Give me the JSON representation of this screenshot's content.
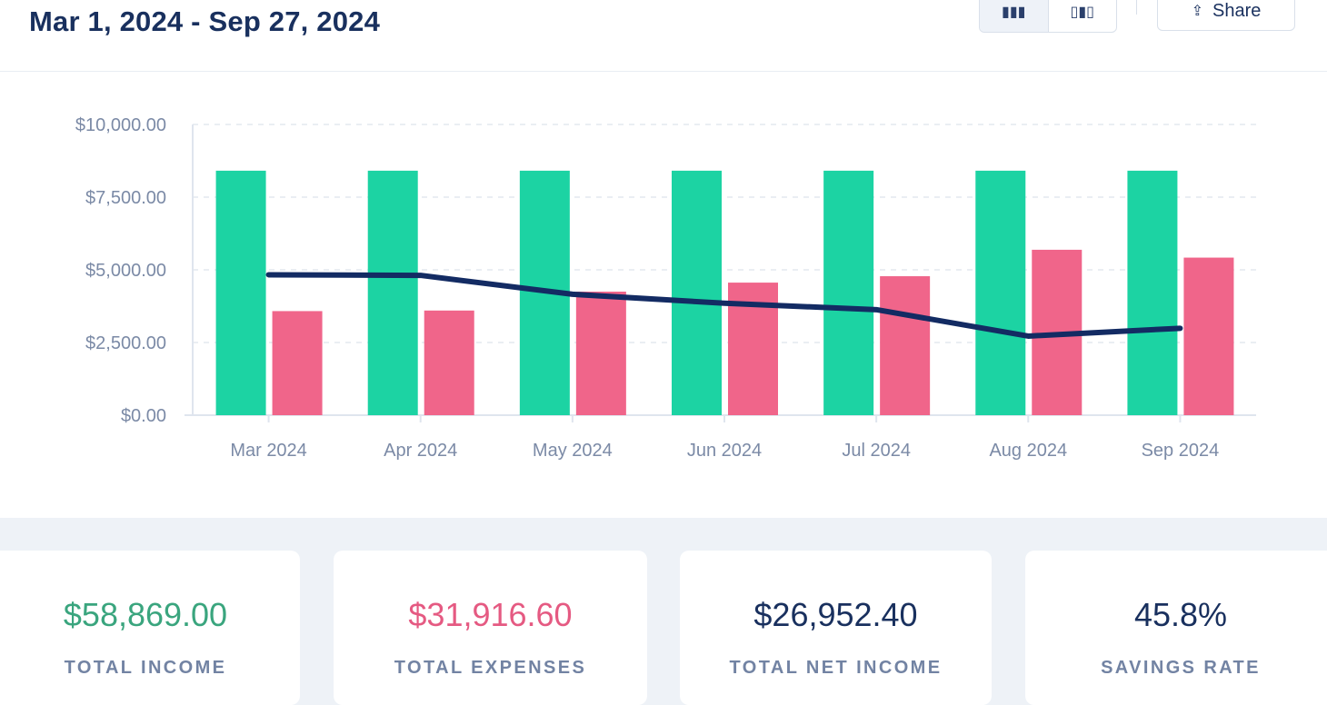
{
  "header": {
    "date_range": "Mar 1, 2024 - Sep 27, 2024",
    "view_bar_icon": "bar-chart-icon",
    "view_grouped_icon": "grouped-bar-chart-icon",
    "share_label": "Share",
    "share_icon": "share-icon"
  },
  "colors": {
    "income": "#1cd3a3",
    "expenses": "#f0658a",
    "net": "#132b63",
    "income_text": "#3aa57e",
    "expenses_text": "#e55a82",
    "net_text": "#19305e"
  },
  "chart_data": {
    "type": "bar",
    "categories": [
      "Mar 2024",
      "Apr 2024",
      "May 2024",
      "Jun 2024",
      "Jul 2024",
      "Aug 2024",
      "Sep 2024"
    ],
    "series": [
      {
        "values": [
          8410,
          8410,
          8410,
          8410,
          8410,
          8410,
          8410
        ],
        "type": "bar"
      },
      {
        "values": [
          3580,
          3600,
          4250,
          4560,
          4780,
          5690,
          5420
        ],
        "type": "bar"
      },
      {
        "values": [
          4830,
          4810,
          4160,
          3850,
          3630,
          2720,
          2990
        ],
        "type": "line"
      }
    ],
    "y_ticks": [
      "$10,000.00",
      "$7,500.00",
      "$5,000.00",
      "$2,500.00",
      "$0.00"
    ],
    "ylim": [
      0,
      10000
    ],
    "grid": true
  },
  "stats": [
    {
      "value": "$58,869.00",
      "label": "TOTAL INCOME"
    },
    {
      "value": "$31,916.60",
      "label": "TOTAL EXPENSES"
    },
    {
      "value": "$26,952.40",
      "label": "TOTAL NET INCOME"
    },
    {
      "value": "45.8%",
      "label": "SAVINGS RATE"
    }
  ]
}
